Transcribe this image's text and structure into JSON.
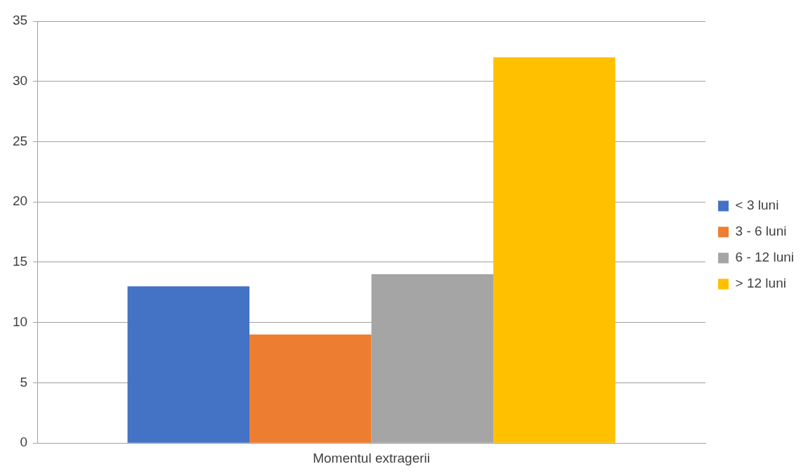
{
  "chart_data": {
    "type": "bar",
    "categories": [
      "Momentul extragerii"
    ],
    "series": [
      {
        "name": "< 3 luni",
        "color": "#4472c4",
        "values": [
          13
        ]
      },
      {
        "name": "3 - 6 luni",
        "color": "#ed7d31",
        "values": [
          9
        ]
      },
      {
        "name": "6 - 12 luni",
        "color": "#a5a5a5",
        "values": [
          14
        ]
      },
      {
        "name": "> 12 luni",
        "color": "#ffc000",
        "values": [
          32
        ]
      }
    ],
    "ylim": [
      0,
      35
    ],
    "yticks": [
      0,
      5,
      10,
      15,
      20,
      25,
      30,
      35
    ],
    "grid": "y",
    "legend": "right"
  }
}
